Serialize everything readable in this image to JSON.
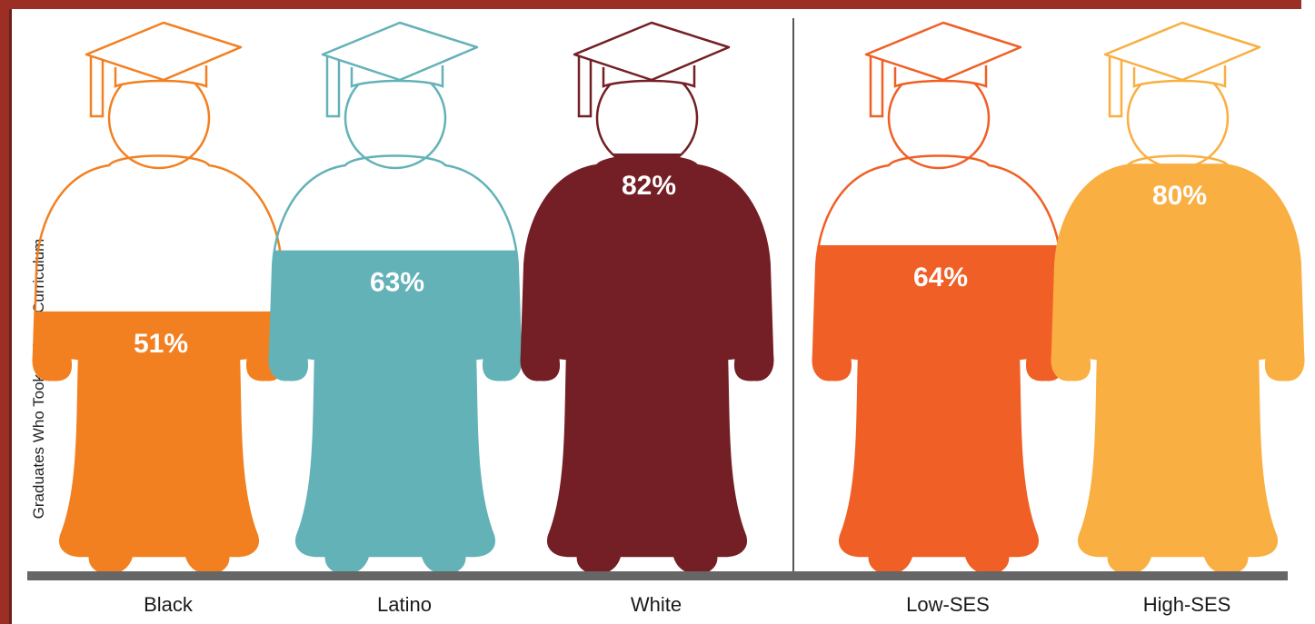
{
  "chart_data": {
    "type": "bar",
    "ylabel": "Graduates Who Took College Curriculum",
    "xlabel": "",
    "ylim": [
      0,
      100
    ],
    "grid": false,
    "legend": "none",
    "groups": [
      [
        "Black",
        "Latino",
        "White"
      ],
      [
        "Low-SES",
        "High-SES"
      ]
    ],
    "categories": [
      "Black",
      "Latino",
      "White",
      "Low-SES",
      "High-SES"
    ],
    "values": [
      51,
      63,
      82,
      64,
      80
    ],
    "value_labels": [
      "51%",
      "63%",
      "82%",
      "64%",
      "80%"
    ],
    "colors": [
      "#f28021",
      "#63b2b8",
      "#731f25",
      "#f05f25",
      "#f9af41"
    ]
  }
}
